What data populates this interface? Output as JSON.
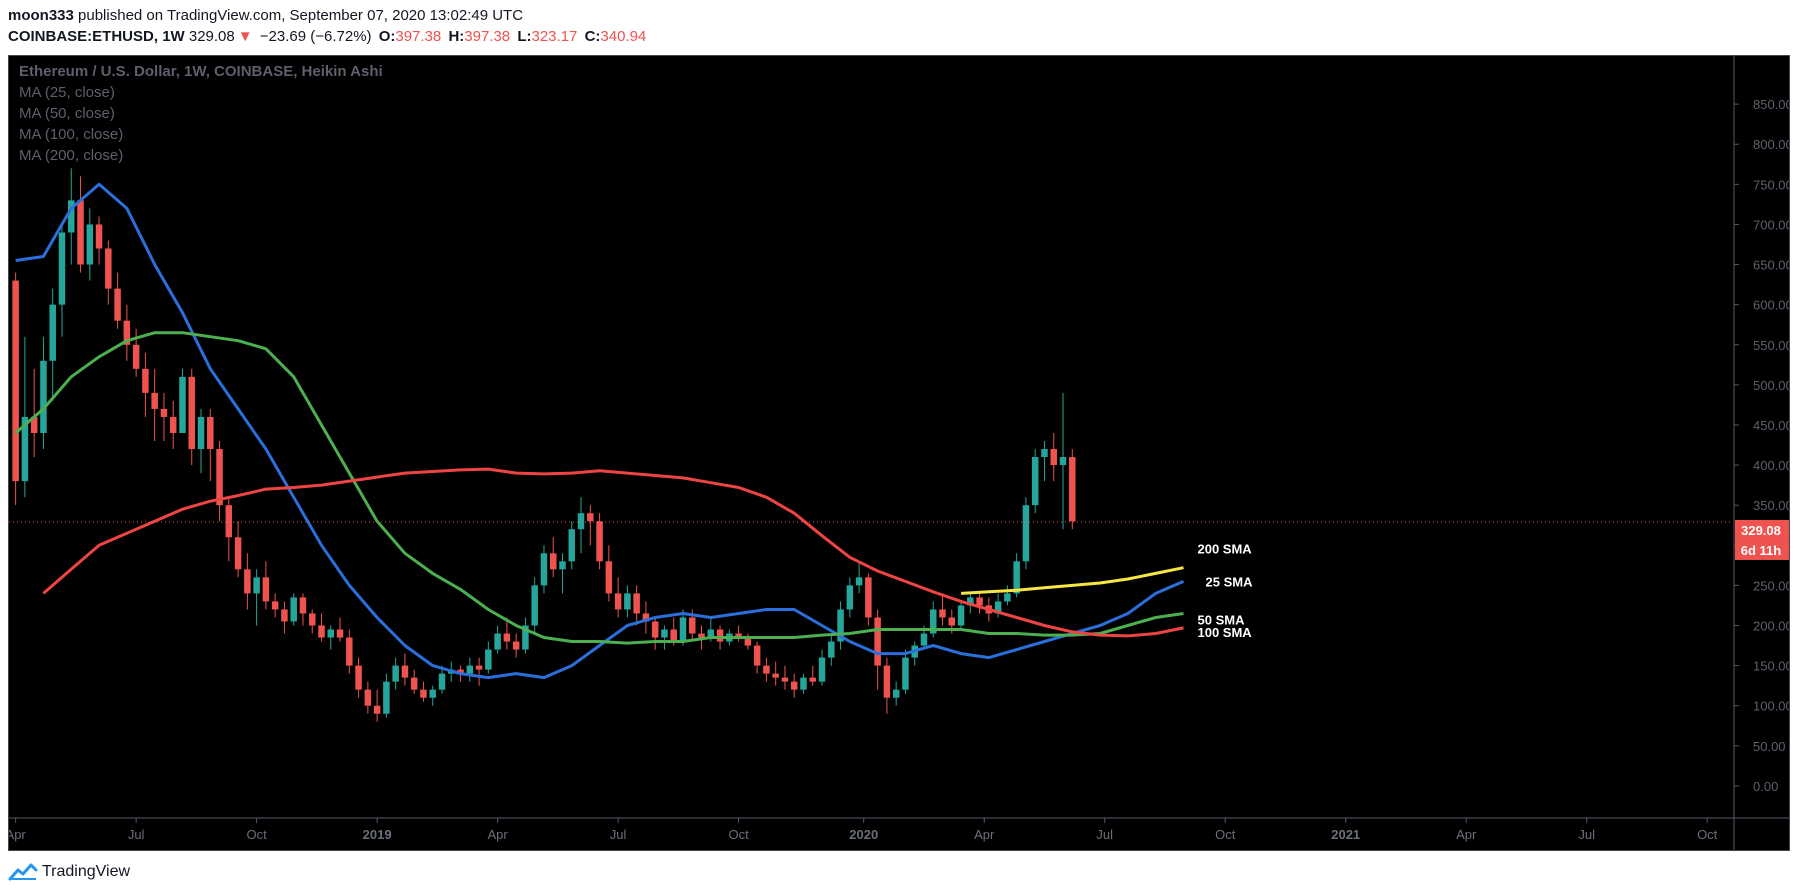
{
  "header": {
    "author": "moon333",
    "published_text": "published on TradingView.com, September 07, 2020 13:02:49 UTC",
    "symbol": "COINBASE:ETHUSD,",
    "interval": "1W",
    "last": "329.08",
    "arrow": "▼",
    "change": "−23.69 (−6.72%)",
    "o_label": "O:",
    "o_value": "397.38",
    "h_label": "H:",
    "h_value": "397.38",
    "l_label": "L:",
    "l_value": "323.17",
    "c_label": "C:",
    "c_value": "340.94"
  },
  "legend": {
    "title": "Ethereum / U.S. Dollar, 1W, COINBASE, Heikin Ashi",
    "items": [
      "MA (25, close)",
      "MA (50, close)",
      "MA (100, close)",
      "MA (200, close)"
    ]
  },
  "price_tag": {
    "value": "329.08",
    "countdown": "6d 11h"
  },
  "footer": {
    "brand": "TradingView"
  },
  "chart_data": {
    "type": "candlestick",
    "title": "Ethereum / U.S. Dollar, 1W, COINBASE, Heikin Ashi",
    "ylim": [
      -40,
      910
    ],
    "y_ticks": [
      "850.00",
      "800.00",
      "750.00",
      "700.00",
      "650.00",
      "600.00",
      "550.00",
      "500.00",
      "450.00",
      "400.00",
      "350.00",
      "300.00",
      "250.00",
      "200.00",
      "150.00",
      "100.00",
      "50.00",
      "0.00"
    ],
    "x_ticks": [
      {
        "label": "Apr",
        "t": 0.5
      },
      {
        "label": "Jul",
        "t": 13.5
      },
      {
        "label": "Oct",
        "t": 26.5
      },
      {
        "label": "2019",
        "t": 39.5
      },
      {
        "label": "Apr",
        "t": 52.5
      },
      {
        "label": "Jul",
        "t": 65.5
      },
      {
        "label": "Oct",
        "t": 78.5
      },
      {
        "label": "2020",
        "t": 92
      },
      {
        "label": "Apr",
        "t": 105
      },
      {
        "label": "Jul",
        "t": 118
      },
      {
        "label": "Oct",
        "t": 131
      },
      {
        "label": "2021",
        "t": 144
      },
      {
        "label": "Apr",
        "t": 157
      },
      {
        "label": "Jul",
        "t": 170
      },
      {
        "label": "Oct",
        "t": 183
      }
    ],
    "x_range": [
      0,
      186
    ],
    "current_price": 329.08,
    "candles": [
      [
        630,
        640,
        350,
        380
      ],
      [
        380,
        560,
        360,
        460
      ],
      [
        460,
        520,
        410,
        440
      ],
      [
        440,
        560,
        420,
        530
      ],
      [
        530,
        620,
        480,
        600
      ],
      [
        600,
        700,
        560,
        690
      ],
      [
        690,
        770,
        650,
        730
      ],
      [
        730,
        760,
        640,
        650
      ],
      [
        650,
        720,
        630,
        700
      ],
      [
        700,
        710,
        650,
        670
      ],
      [
        670,
        680,
        600,
        620
      ],
      [
        620,
        640,
        570,
        580
      ],
      [
        580,
        600,
        530,
        550
      ],
      [
        550,
        570,
        510,
        520
      ],
      [
        520,
        540,
        460,
        490
      ],
      [
        490,
        520,
        430,
        470
      ],
      [
        470,
        490,
        430,
        460
      ],
      [
        460,
        480,
        420,
        440
      ],
      [
        440,
        520,
        440,
        510
      ],
      [
        510,
        520,
        400,
        420
      ],
      [
        420,
        470,
        390,
        460
      ],
      [
        460,
        470,
        380,
        420
      ],
      [
        420,
        430,
        330,
        350
      ],
      [
        350,
        360,
        280,
        310
      ],
      [
        310,
        330,
        260,
        270
      ],
      [
        270,
        290,
        220,
        240
      ],
      [
        240,
        270,
        200,
        260
      ],
      [
        260,
        280,
        220,
        230
      ],
      [
        230,
        240,
        210,
        220
      ],
      [
        220,
        230,
        190,
        205
      ],
      [
        205,
        240,
        200,
        235
      ],
      [
        235,
        240,
        200,
        215
      ],
      [
        215,
        220,
        190,
        200
      ],
      [
        200,
        215,
        180,
        185
      ],
      [
        185,
        200,
        170,
        195
      ],
      [
        195,
        210,
        180,
        185
      ],
      [
        185,
        195,
        140,
        150
      ],
      [
        150,
        160,
        110,
        120
      ],
      [
        120,
        130,
        90,
        100
      ],
      [
        100,
        120,
        80,
        90
      ],
      [
        90,
        140,
        85,
        130
      ],
      [
        130,
        160,
        120,
        150
      ],
      [
        150,
        165,
        125,
        135
      ],
      [
        135,
        145,
        115,
        120
      ],
      [
        120,
        130,
        105,
        110
      ],
      [
        110,
        125,
        100,
        120
      ],
      [
        120,
        150,
        115,
        140
      ],
      [
        140,
        155,
        130,
        145
      ],
      [
        145,
        150,
        130,
        140
      ],
      [
        140,
        160,
        130,
        150
      ],
      [
        150,
        160,
        125,
        145
      ],
      [
        145,
        180,
        140,
        170
      ],
      [
        170,
        200,
        165,
        190
      ],
      [
        190,
        210,
        170,
        180
      ],
      [
        180,
        190,
        160,
        170
      ],
      [
        170,
        210,
        165,
        200
      ],
      [
        200,
        260,
        190,
        250
      ],
      [
        250,
        300,
        240,
        290
      ],
      [
        290,
        310,
        260,
        270
      ],
      [
        270,
        290,
        240,
        280
      ],
      [
        280,
        330,
        270,
        320
      ],
      [
        320,
        360,
        290,
        340
      ],
      [
        340,
        350,
        300,
        330
      ],
      [
        330,
        340,
        270,
        280
      ],
      [
        280,
        300,
        230,
        240
      ],
      [
        240,
        260,
        210,
        220
      ],
      [
        220,
        250,
        210,
        240
      ],
      [
        240,
        250,
        200,
        215
      ],
      [
        215,
        230,
        190,
        205
      ],
      [
        205,
        210,
        170,
        185
      ],
      [
        185,
        200,
        170,
        195
      ],
      [
        195,
        210,
        175,
        180
      ],
      [
        180,
        220,
        175,
        210
      ],
      [
        210,
        220,
        180,
        190
      ],
      [
        190,
        200,
        170,
        185
      ],
      [
        185,
        210,
        180,
        195
      ],
      [
        195,
        200,
        170,
        180
      ],
      [
        180,
        195,
        175,
        190
      ],
      [
        190,
        200,
        180,
        185
      ],
      [
        185,
        190,
        170,
        175
      ],
      [
        175,
        180,
        140,
        150
      ],
      [
        150,
        160,
        130,
        140
      ],
      [
        140,
        155,
        125,
        135
      ],
      [
        135,
        150,
        120,
        130
      ],
      [
        130,
        140,
        110,
        120
      ],
      [
        120,
        140,
        115,
        135
      ],
      [
        135,
        150,
        125,
        130
      ],
      [
        130,
        170,
        125,
        160
      ],
      [
        160,
        190,
        150,
        180
      ],
      [
        180,
        230,
        170,
        220
      ],
      [
        220,
        260,
        210,
        250
      ],
      [
        250,
        280,
        240,
        260
      ],
      [
        260,
        265,
        200,
        210
      ],
      [
        210,
        220,
        120,
        150
      ],
      [
        150,
        160,
        90,
        110
      ],
      [
        110,
        130,
        100,
        120
      ],
      [
        120,
        170,
        115,
        160
      ],
      [
        160,
        180,
        150,
        175
      ],
      [
        175,
        200,
        170,
        190
      ],
      [
        190,
        230,
        185,
        220
      ],
      [
        220,
        240,
        200,
        210
      ],
      [
        210,
        220,
        190,
        200
      ],
      [
        200,
        230,
        195,
        225
      ],
      [
        225,
        240,
        215,
        235
      ],
      [
        235,
        240,
        215,
        225
      ],
      [
        225,
        235,
        205,
        215
      ],
      [
        215,
        240,
        210,
        230
      ],
      [
        230,
        250,
        225,
        240
      ],
      [
        240,
        290,
        235,
        280
      ],
      [
        280,
        360,
        270,
        350
      ],
      [
        350,
        420,
        340,
        410
      ],
      [
        410,
        430,
        380,
        420
      ],
      [
        420,
        440,
        380,
        400
      ],
      [
        400,
        490,
        320,
        410
      ],
      [
        410,
        420,
        320,
        330
      ]
    ],
    "series": [
      {
        "name": "MA (25, close)",
        "color": "#2a6fdb",
        "label": "25 SMA",
        "points": [
          [
            0,
            655
          ],
          [
            3,
            660
          ],
          [
            6,
            720
          ],
          [
            9,
            750
          ],
          [
            12,
            720
          ],
          [
            15,
            650
          ],
          [
            18,
            590
          ],
          [
            21,
            520
          ],
          [
            24,
            470
          ],
          [
            27,
            420
          ],
          [
            30,
            360
          ],
          [
            33,
            300
          ],
          [
            36,
            250
          ],
          [
            39,
            210
          ],
          [
            42,
            175
          ],
          [
            45,
            150
          ],
          [
            48,
            140
          ],
          [
            51,
            135
          ],
          [
            54,
            140
          ],
          [
            57,
            135
          ],
          [
            60,
            150
          ],
          [
            63,
            175
          ],
          [
            66,
            200
          ],
          [
            69,
            210
          ],
          [
            72,
            215
          ],
          [
            75,
            210
          ],
          [
            78,
            215
          ],
          [
            81,
            220
          ],
          [
            84,
            220
          ],
          [
            87,
            200
          ],
          [
            90,
            180
          ],
          [
            93,
            165
          ],
          [
            96,
            165
          ],
          [
            99,
            175
          ],
          [
            102,
            165
          ],
          [
            105,
            160
          ],
          [
            108,
            170
          ],
          [
            111,
            180
          ],
          [
            114,
            190
          ],
          [
            117,
            200
          ],
          [
            120,
            215
          ],
          [
            123,
            240
          ],
          [
            126,
            255
          ]
        ]
      },
      {
        "name": "MA (50, close)",
        "color": "#4caf50",
        "label": "50 SMA",
        "points": [
          [
            0,
            440
          ],
          [
            3,
            470
          ],
          [
            6,
            510
          ],
          [
            9,
            535
          ],
          [
            12,
            555
          ],
          [
            15,
            565
          ],
          [
            18,
            565
          ],
          [
            21,
            560
          ],
          [
            24,
            555
          ],
          [
            27,
            545
          ],
          [
            30,
            510
          ],
          [
            33,
            450
          ],
          [
            36,
            390
          ],
          [
            39,
            330
          ],
          [
            42,
            290
          ],
          [
            45,
            265
          ],
          [
            48,
            245
          ],
          [
            51,
            220
          ],
          [
            54,
            200
          ],
          [
            57,
            185
          ],
          [
            60,
            180
          ],
          [
            63,
            180
          ],
          [
            66,
            178
          ],
          [
            69,
            180
          ],
          [
            72,
            180
          ],
          [
            75,
            185
          ],
          [
            78,
            185
          ],
          [
            81,
            185
          ],
          [
            84,
            185
          ],
          [
            87,
            188
          ],
          [
            90,
            190
          ],
          [
            93,
            195
          ],
          [
            96,
            195
          ],
          [
            99,
            195
          ],
          [
            102,
            195
          ],
          [
            105,
            190
          ],
          [
            108,
            190
          ],
          [
            111,
            188
          ],
          [
            114,
            188
          ],
          [
            117,
            190
          ],
          [
            120,
            200
          ],
          [
            123,
            210
          ],
          [
            126,
            215
          ]
        ]
      },
      {
        "name": "MA (100, close)",
        "color": "#ef4444",
        "label": "100 SMA",
        "points": [
          [
            3,
            240
          ],
          [
            6,
            270
          ],
          [
            9,
            300
          ],
          [
            12,
            315
          ],
          [
            15,
            330
          ],
          [
            18,
            345
          ],
          [
            21,
            355
          ],
          [
            24,
            362
          ],
          [
            27,
            370
          ],
          [
            30,
            372
          ],
          [
            33,
            375
          ],
          [
            36,
            380
          ],
          [
            39,
            385
          ],
          [
            42,
            390
          ],
          [
            45,
            392
          ],
          [
            48,
            394
          ],
          [
            51,
            395
          ],
          [
            54,
            390
          ],
          [
            57,
            389
          ],
          [
            60,
            390
          ],
          [
            63,
            393
          ],
          [
            66,
            390
          ],
          [
            69,
            387
          ],
          [
            72,
            384
          ],
          [
            75,
            378
          ],
          [
            78,
            372
          ],
          [
            81,
            360
          ],
          [
            84,
            340
          ],
          [
            87,
            312
          ],
          [
            90,
            285
          ],
          [
            93,
            268
          ],
          [
            96,
            255
          ],
          [
            99,
            242
          ],
          [
            102,
            230
          ],
          [
            105,
            220
          ],
          [
            108,
            210
          ],
          [
            111,
            200
          ],
          [
            114,
            192
          ],
          [
            117,
            188
          ],
          [
            120,
            187
          ],
          [
            123,
            190
          ],
          [
            126,
            197
          ]
        ]
      },
      {
        "name": "MA (200, close)",
        "color": "#f5e642",
        "label": "200 SMA",
        "points": [
          [
            102,
            240
          ],
          [
            105,
            242
          ],
          [
            108,
            244
          ],
          [
            111,
            247
          ],
          [
            114,
            250
          ],
          [
            117,
            253
          ],
          [
            120,
            258
          ],
          [
            123,
            265
          ],
          [
            126,
            272
          ]
        ]
      }
    ]
  }
}
